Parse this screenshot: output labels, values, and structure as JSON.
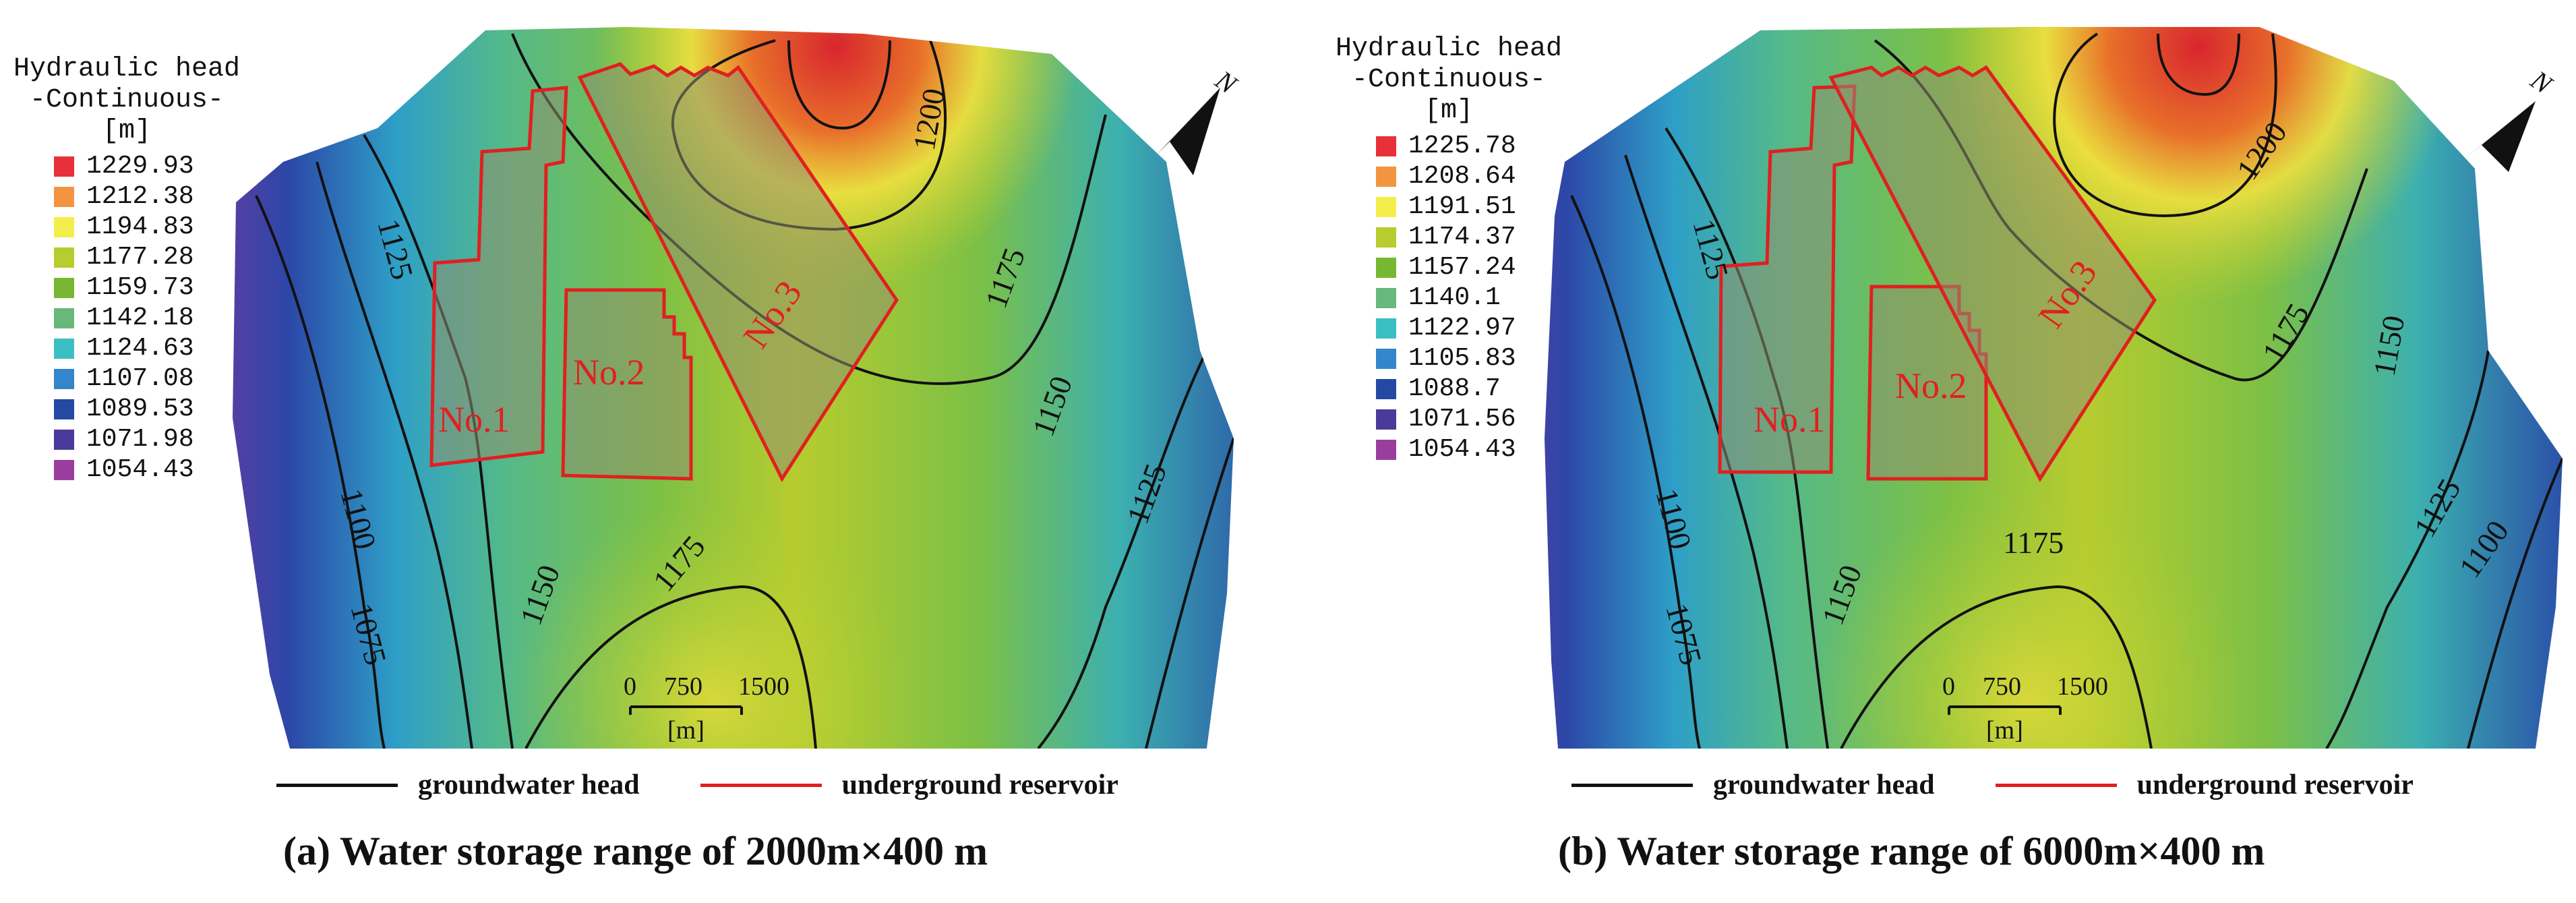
{
  "panels": [
    {
      "id": "a",
      "legend": {
        "title_line1": "Hydraulic head",
        "title_line2": "-Continuous-",
        "unit": "[m]",
        "items": [
          {
            "value": "1229.93",
            "color": "#e8303a"
          },
          {
            "value": "1212.38",
            "color": "#f39540"
          },
          {
            "value": "1194.83",
            "color": "#f4ee4a"
          },
          {
            "value": "1177.28",
            "color": "#b7cc2e"
          },
          {
            "value": "1159.73",
            "color": "#76b832"
          },
          {
            "value": "1142.18",
            "color": "#67b97b"
          },
          {
            "value": "1124.63",
            "color": "#3cbfc4"
          },
          {
            "value": "1107.08",
            "color": "#3286c9"
          },
          {
            "value": "1089.53",
            "color": "#2449a3"
          },
          {
            "value": "1071.98",
            "color": "#4b3a9c"
          },
          {
            "value": "1054.43",
            "color": "#9a3e9e"
          }
        ]
      },
      "contour_labels": [
        "1200",
        "1175",
        "1150",
        "1125",
        "1100",
        "1075",
        "1150",
        "1175",
        "1125"
      ],
      "reservoir_labels": [
        "No.1",
        "No.2",
        "No.3"
      ],
      "scale_bar": {
        "ticks": [
          "0",
          "750",
          "1500"
        ],
        "unit": "[m]"
      },
      "north_label": "N",
      "bottom_legend": {
        "line1": "groundwater head",
        "line2": "underground reservoir"
      },
      "caption": "(a)  Water storage range of 2000m×400 m"
    },
    {
      "id": "b",
      "legend": {
        "title_line1": "Hydraulic head",
        "title_line2": "-Continuous-",
        "unit": "[m]",
        "items": [
          {
            "value": "1225.78",
            "color": "#e8303a"
          },
          {
            "value": "1208.64",
            "color": "#f39540"
          },
          {
            "value": "1191.51",
            "color": "#f4ee4a"
          },
          {
            "value": "1174.37",
            "color": "#b7cc2e"
          },
          {
            "value": "1157.24",
            "color": "#76b832"
          },
          {
            "value": "1140.1",
            "color": "#67b97b"
          },
          {
            "value": "1122.97",
            "color": "#3cbfc4"
          },
          {
            "value": "1105.83",
            "color": "#3286c9"
          },
          {
            "value": "1088.7",
            "color": "#2449a3"
          },
          {
            "value": "1071.56",
            "color": "#4b3a9c"
          },
          {
            "value": "1054.43",
            "color": "#9a3e9e"
          }
        ]
      },
      "contour_labels": [
        "1200",
        "1175",
        "1150",
        "1125",
        "1100",
        "1075",
        "1150",
        "1175",
        "1125",
        "1100"
      ],
      "reservoir_labels": [
        "No.1",
        "No.2",
        "No.3"
      ],
      "scale_bar": {
        "ticks": [
          "0",
          "750",
          "1500"
        ],
        "unit": "[m]"
      },
      "north_label": "N",
      "bottom_legend": {
        "line1": "groundwater head",
        "line2": "underground reservoir"
      },
      "caption": "(b)  Water storage range of 6000m×400 m"
    }
  ],
  "colors": {
    "contour": "#111111",
    "reservoir": "#e02020"
  }
}
